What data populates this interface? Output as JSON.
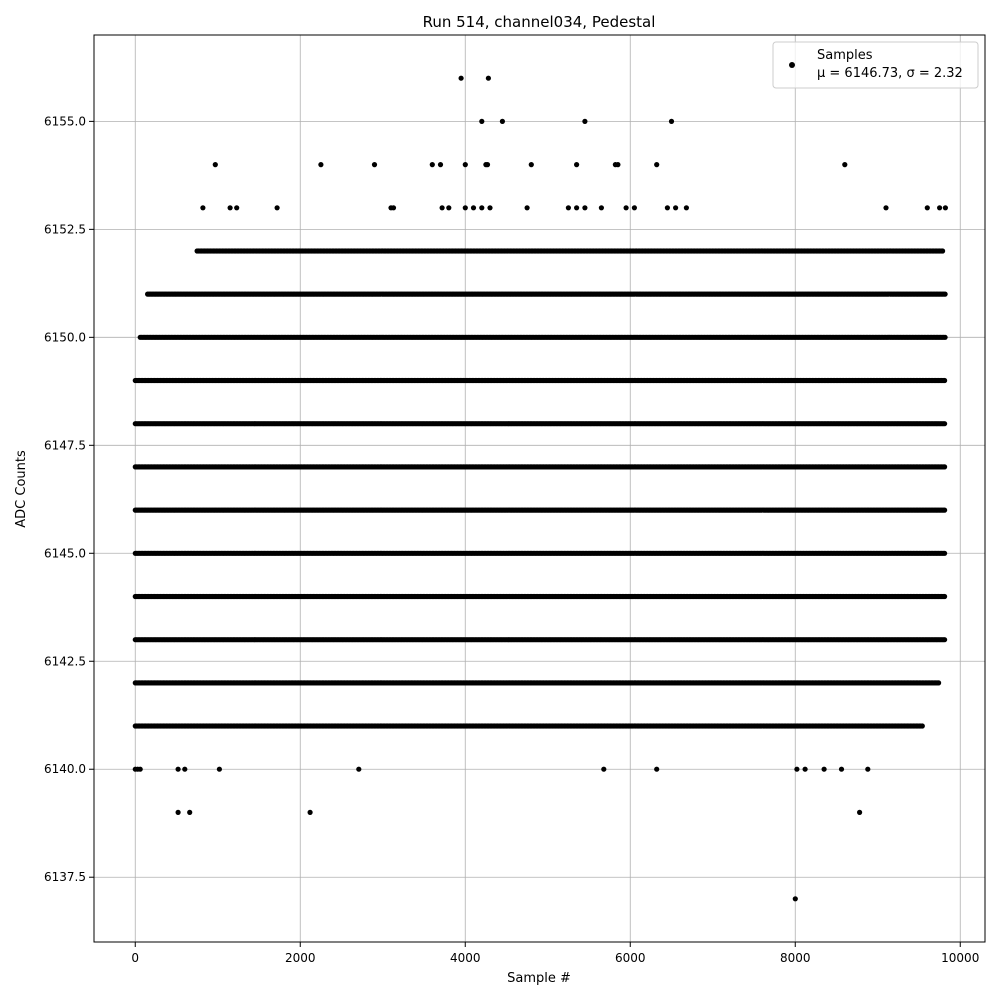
{
  "chart_data": {
    "type": "scatter",
    "title": "Run 514, channel034, Pedestal",
    "xlabel": "Sample #",
    "ylabel": "ADC Counts",
    "xlim": [
      -500,
      10300
    ],
    "ylim": [
      6136.0,
      6157.0
    ],
    "x_ticks": [
      0,
      2000,
      4000,
      6000,
      8000,
      10000
    ],
    "x_tick_labels": [
      "0",
      "2000",
      "4000",
      "6000",
      "8000",
      "10000"
    ],
    "y_ticks": [
      6137.5,
      6140.0,
      6142.5,
      6145.0,
      6147.5,
      6150.0,
      6152.5,
      6155.0
    ],
    "y_tick_labels": [
      "6137.5",
      "6140.0",
      "6142.5",
      "6145.0",
      "6147.5",
      "6150.0",
      "6152.5",
      "6155.0"
    ],
    "grid": true,
    "legend": {
      "position": "top-right",
      "entries": [
        {
          "label_line1": "Samples",
          "label_line2": "μ = 6146.73, σ = 2.32",
          "marker": "circle",
          "color": "#000000"
        }
      ]
    },
    "series": [
      {
        "name": "Samples",
        "color": "#000000",
        "marker": "circle",
        "dense_levels": [
          {
            "y": 6145,
            "x_range": [
              0,
              9820
            ]
          },
          {
            "y": 6146,
            "x_range": [
              0,
              9820
            ]
          },
          {
            "y": 6147,
            "x_range": [
              0,
              9820
            ]
          },
          {
            "y": 6148,
            "x_range": [
              0,
              9820
            ]
          },
          {
            "y": 6149,
            "x_range": [
              0,
              9820
            ]
          },
          {
            "y": 6150,
            "x_range": [
              60,
              9820
            ]
          },
          {
            "y": 6144,
            "x_range": [
              0,
              9820
            ]
          },
          {
            "y": 6143,
            "x_range": [
              0,
              9820
            ]
          },
          {
            "y": 6151,
            "x_range": [
              150,
              9820
            ]
          },
          {
            "y": 6142,
            "x_range": [
              0,
              9750
            ]
          },
          {
            "y": 6141,
            "x_range": [
              0,
              9550
            ]
          },
          {
            "y": 6152,
            "x_range": [
              750,
              9800
            ]
          }
        ],
        "points": [
          [
            3950,
            6156
          ],
          [
            4280,
            6156
          ],
          [
            4200,
            6155
          ],
          [
            4450,
            6155
          ],
          [
            5450,
            6155
          ],
          [
            6500,
            6155
          ],
          [
            970,
            6154
          ],
          [
            2250,
            6154
          ],
          [
            2900,
            6154
          ],
          [
            3600,
            6154
          ],
          [
            3700,
            6154
          ],
          [
            4000,
            6154
          ],
          [
            4250,
            6154
          ],
          [
            4270,
            6154
          ],
          [
            4800,
            6154
          ],
          [
            5350,
            6154
          ],
          [
            5820,
            6154
          ],
          [
            5850,
            6154
          ],
          [
            6320,
            6154
          ],
          [
            8600,
            6154
          ],
          [
            820,
            6153
          ],
          [
            1150,
            6153
          ],
          [
            1230,
            6153
          ],
          [
            1720,
            6153
          ],
          [
            3100,
            6153
          ],
          [
            3130,
            6153
          ],
          [
            3720,
            6153
          ],
          [
            3800,
            6153
          ],
          [
            4000,
            6153
          ],
          [
            4100,
            6153
          ],
          [
            4200,
            6153
          ],
          [
            4300,
            6153
          ],
          [
            4750,
            6153
          ],
          [
            5250,
            6153
          ],
          [
            5350,
            6153
          ],
          [
            5450,
            6153
          ],
          [
            5650,
            6153
          ],
          [
            5950,
            6153
          ],
          [
            6050,
            6153
          ],
          [
            6450,
            6153
          ],
          [
            6550,
            6153
          ],
          [
            6680,
            6153
          ],
          [
            9100,
            6153
          ],
          [
            9600,
            6153
          ],
          [
            9750,
            6153
          ],
          [
            9820,
            6153
          ],
          [
            0,
            6140
          ],
          [
            30,
            6140
          ],
          [
            60,
            6140
          ],
          [
            520,
            6140
          ],
          [
            600,
            6140
          ],
          [
            1020,
            6140
          ],
          [
            2710,
            6140
          ],
          [
            5680,
            6140
          ],
          [
            6320,
            6140
          ],
          [
            8020,
            6140
          ],
          [
            8120,
            6140
          ],
          [
            8350,
            6140
          ],
          [
            8560,
            6140
          ],
          [
            8880,
            6140
          ],
          [
            520,
            6139
          ],
          [
            660,
            6139
          ],
          [
            2120,
            6139
          ],
          [
            8780,
            6139
          ],
          [
            8000,
            6137
          ]
        ]
      }
    ]
  }
}
